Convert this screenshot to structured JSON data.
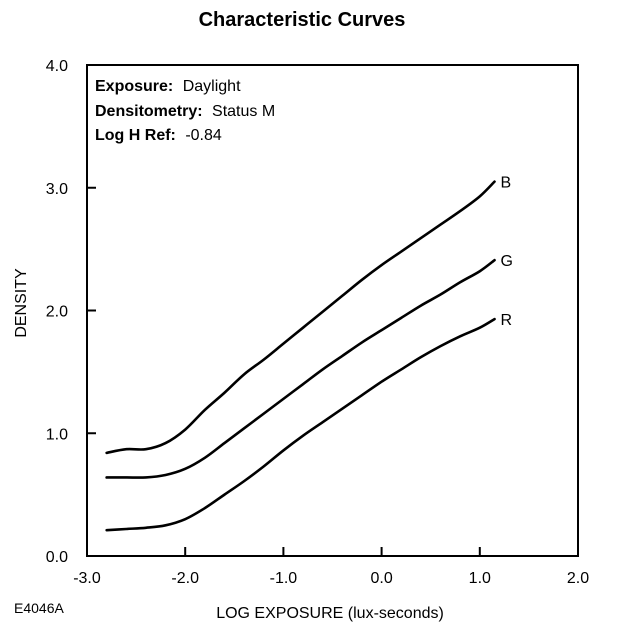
{
  "figure_id": "E4046A",
  "info": [
    {
      "key": "Exposure:",
      "value": "Daylight"
    },
    {
      "key": "Densitometry:",
      "value": "Status M"
    },
    {
      "key": "Log H Ref:",
      "value": "-0.84"
    }
  ],
  "chart_data": {
    "type": "line",
    "title": "Characteristic Curves",
    "xlabel": "LOG EXPOSURE (lux-seconds)",
    "ylabel": "DENSITY",
    "xlim": [
      -3.0,
      2.0
    ],
    "ylim": [
      0.0,
      4.0
    ],
    "x_ticks": [
      {
        "value": -3.0,
        "label": "-3.0"
      },
      {
        "value": -2.0,
        "label": "-2.0"
      },
      {
        "value": -1.0,
        "label": "-1.0"
      },
      {
        "value": 0.0,
        "label": "0.0"
      },
      {
        "value": 1.0,
        "label": "1.0"
      },
      {
        "value": 2.0,
        "label": "2.0"
      }
    ],
    "y_ticks": [
      {
        "value": 0.0,
        "label": "0.0"
      },
      {
        "value": 1.0,
        "label": "1.0"
      },
      {
        "value": 2.0,
        "label": "2.0"
      },
      {
        "value": 3.0,
        "label": "3.0"
      },
      {
        "value": 4.0,
        "label": "4.0"
      }
    ],
    "grid": false,
    "series": [
      {
        "name": "B",
        "color": "#000000",
        "points": [
          [
            -2.8,
            0.84
          ],
          [
            -2.6,
            0.87
          ],
          [
            -2.4,
            0.87
          ],
          [
            -2.2,
            0.92
          ],
          [
            -2.0,
            1.03
          ],
          [
            -1.8,
            1.19
          ],
          [
            -1.6,
            1.33
          ],
          [
            -1.4,
            1.48
          ],
          [
            -1.2,
            1.6
          ],
          [
            -1.0,
            1.73
          ],
          [
            -0.8,
            1.86
          ],
          [
            -0.6,
            1.99
          ],
          [
            -0.4,
            2.12
          ],
          [
            -0.2,
            2.25
          ],
          [
            0.0,
            2.37
          ],
          [
            0.2,
            2.48
          ],
          [
            0.4,
            2.59
          ],
          [
            0.6,
            2.7
          ],
          [
            0.8,
            2.81
          ],
          [
            1.0,
            2.93
          ],
          [
            1.15,
            3.05
          ]
        ]
      },
      {
        "name": "G",
        "color": "#000000",
        "points": [
          [
            -2.8,
            0.64
          ],
          [
            -2.6,
            0.64
          ],
          [
            -2.4,
            0.64
          ],
          [
            -2.2,
            0.66
          ],
          [
            -2.0,
            0.71
          ],
          [
            -1.8,
            0.8
          ],
          [
            -1.6,
            0.92
          ],
          [
            -1.4,
            1.04
          ],
          [
            -1.2,
            1.16
          ],
          [
            -1.0,
            1.28
          ],
          [
            -0.8,
            1.4
          ],
          [
            -0.6,
            1.52
          ],
          [
            -0.4,
            1.63
          ],
          [
            -0.2,
            1.74
          ],
          [
            0.0,
            1.84
          ],
          [
            0.2,
            1.94
          ],
          [
            0.4,
            2.04
          ],
          [
            0.6,
            2.13
          ],
          [
            0.8,
            2.23
          ],
          [
            1.0,
            2.32
          ],
          [
            1.15,
            2.41
          ]
        ]
      },
      {
        "name": "R",
        "color": "#000000",
        "points": [
          [
            -2.8,
            0.21
          ],
          [
            -2.6,
            0.22
          ],
          [
            -2.4,
            0.23
          ],
          [
            -2.2,
            0.25
          ],
          [
            -2.0,
            0.3
          ],
          [
            -1.8,
            0.39
          ],
          [
            -1.6,
            0.5
          ],
          [
            -1.4,
            0.61
          ],
          [
            -1.2,
            0.73
          ],
          [
            -1.0,
            0.86
          ],
          [
            -0.8,
            0.98
          ],
          [
            -0.6,
            1.09
          ],
          [
            -0.4,
            1.2
          ],
          [
            -0.2,
            1.31
          ],
          [
            0.0,
            1.42
          ],
          [
            0.2,
            1.52
          ],
          [
            0.4,
            1.62
          ],
          [
            0.6,
            1.71
          ],
          [
            0.8,
            1.79
          ],
          [
            1.0,
            1.86
          ],
          [
            1.15,
            1.93
          ]
        ]
      }
    ]
  }
}
